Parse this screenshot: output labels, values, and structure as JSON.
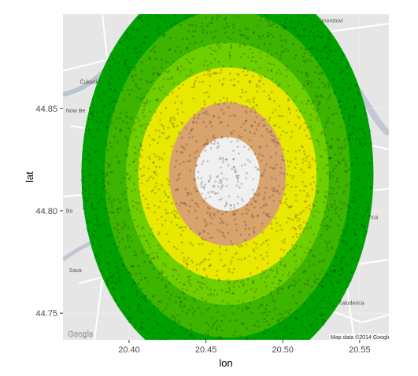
{
  "chart_data": {
    "type": "scatter",
    "title": "",
    "xlabel": "lon",
    "ylabel": "lat",
    "xlim": [
      20.357,
      20.569
    ],
    "ylim": [
      44.737,
      44.896
    ],
    "x_ticks": [
      20.4,
      20.45,
      20.5,
      20.55
    ],
    "x_tick_labels": [
      "20.40",
      "20.45",
      "20.50",
      "20.55"
    ],
    "y_ticks": [
      44.75,
      44.8,
      44.85
    ],
    "y_tick_labels": [
      "44.75",
      "44.80",
      "44.85"
    ],
    "grid": true,
    "legend": "none",
    "center": {
      "lon": 20.464,
      "lat": 44.818
    },
    "bands": [
      {
        "color": "#00a000",
        "lon_radius": 0.095,
        "lat_radius": 0.098
      },
      {
        "color": "#3cb400",
        "lon_radius": 0.08,
        "lat_radius": 0.08
      },
      {
        "color": "#6ecf00",
        "lon_radius": 0.066,
        "lat_radius": 0.064
      },
      {
        "color": "#e8e800",
        "lon_radius": 0.058,
        "lat_radius": 0.052
      },
      {
        "color": "#d9a36e",
        "lon_radius": 0.038,
        "lat_radius": 0.035
      },
      {
        "color": "#f0f0f0",
        "lon_radius": 0.021,
        "lat_radius": 0.018
      }
    ],
    "point_color": "#000000",
    "point_opacity": 0.18
  },
  "basemap": {
    "background": "#e6e6e6",
    "road_color": "#ffffff",
    "river_color": "#a8b4c4",
    "place_labels": [
      {
        "text": "Čukarik",
        "lon": 20.368,
        "lat": 44.862
      },
      {
        "text": "Now Be",
        "lon": 20.359,
        "lat": 44.848
      },
      {
        "text": "Bo",
        "lon": 20.359,
        "lat": 44.799
      },
      {
        "text": "Sava",
        "lon": 20.361,
        "lat": 44.77
      },
      {
        "text": "Vinca",
        "lon": 20.553,
        "lat": 44.796
      },
      {
        "text": "Kaluderica",
        "lon": 20.536,
        "lat": 44.754
      },
      {
        "text": "Smorotovi",
        "lon": 20.523,
        "lat": 44.892
      }
    ],
    "logo_text": "Google",
    "attribution": "Map data ©2014 Google"
  }
}
